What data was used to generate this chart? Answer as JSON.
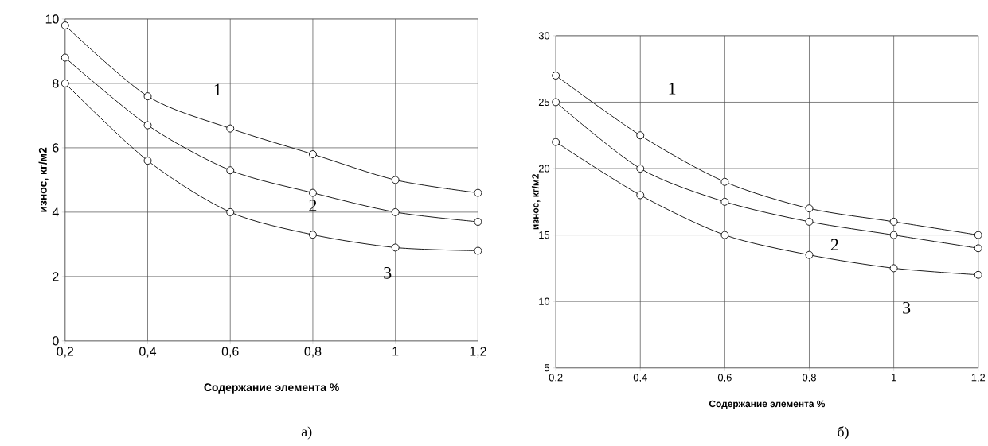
{
  "chart_data": [
    {
      "type": "line",
      "xlabel": "Содержание элемента %",
      "ylabel": "износ, кг/м2",
      "x": [
        0.2,
        0.4,
        0.6,
        0.8,
        1.0,
        1.2
      ],
      "xlim": [
        0.2,
        1.2
      ],
      "ylim": [
        0,
        10
      ],
      "xticks": [
        {
          "value": 0.2,
          "label": "0,2"
        },
        {
          "value": 0.4,
          "label": "0,4"
        },
        {
          "value": 0.6,
          "label": "0,6"
        },
        {
          "value": 0.8,
          "label": "0,8"
        },
        {
          "value": 1,
          "label": "1"
        },
        {
          "value": 1.2,
          "label": "1,2"
        }
      ],
      "yticks": [
        0,
        2,
        4,
        6,
        8,
        10
      ],
      "grid": true,
      "marker": "circle",
      "series": [
        {
          "color": "#000000",
          "values": [
            9.8,
            7.6,
            6.6,
            5.8,
            5.0,
            4.6
          ]
        },
        {
          "color": "#000000",
          "values": [
            8.8,
            6.7,
            5.3,
            4.6,
            4.0,
            3.7
          ]
        },
        {
          "color": "#000000",
          "values": [
            8.0,
            5.6,
            4.0,
            3.3,
            2.9,
            2.8
          ]
        }
      ],
      "annotations": [
        "1",
        "2",
        "3",
        "а)"
      ]
    },
    {
      "type": "line",
      "xlabel": "Содержание элемента %",
      "ylabel": "износ, кг/м2",
      "x": [
        0.2,
        0.4,
        0.6,
        0.8,
        1.0,
        1.2
      ],
      "xlim": [
        0.2,
        1.2
      ],
      "ylim": [
        5,
        30
      ],
      "xticks": [
        {
          "value": 0.2,
          "label": "0,2"
        },
        {
          "value": 0.4,
          "label": "0,4"
        },
        {
          "value": 0.6,
          "label": "0,6"
        },
        {
          "value": 0.8,
          "label": "0,8"
        },
        {
          "value": 1,
          "label": "1"
        },
        {
          "value": 1.2,
          "label": "1,2"
        }
      ],
      "yticks": [
        5,
        10,
        15,
        20,
        25,
        30
      ],
      "grid": true,
      "marker": "circle",
      "series": [
        {
          "color": "#000000",
          "values": [
            27,
            22.5,
            19,
            17,
            16,
            15
          ]
        },
        {
          "color": "#000000",
          "values": [
            25,
            20,
            17.5,
            16,
            15,
            14
          ]
        },
        {
          "color": "#000000",
          "values": [
            22,
            18,
            15,
            13.5,
            12.5,
            12
          ]
        }
      ],
      "annotations": [
        "1",
        "2",
        "3",
        "б)"
      ]
    }
  ]
}
